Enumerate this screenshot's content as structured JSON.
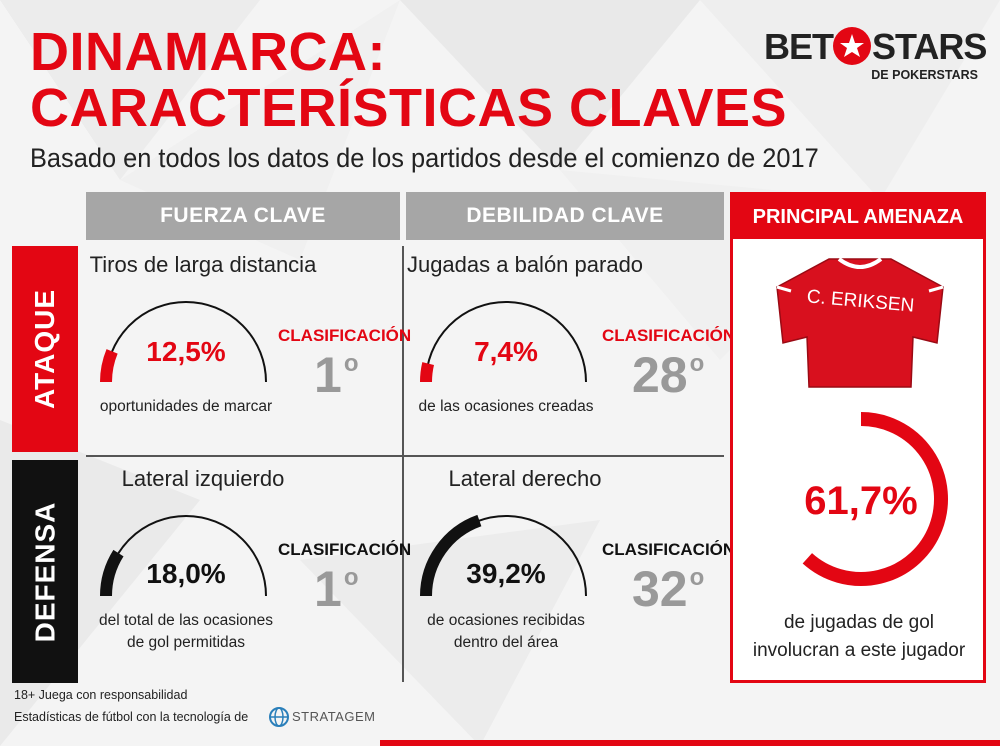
{
  "header": {
    "title_line1": "DINAMARCA:",
    "title_line2": "CARACTERÍSTICAS CLAVES",
    "subtitle": "Basado en todos los datos de los partidos desde el comienzo de 2017"
  },
  "logo": {
    "brand_left": "BET",
    "brand_right": "STARS",
    "brand_sub": "DE POKERSTARS"
  },
  "columns": {
    "strength": "FUERZA CLAVE",
    "weakness": "DEBILIDAD CLAVE",
    "threat": "PRINCIPAL AMENAZA"
  },
  "rows": {
    "attack": "ATAQUE",
    "defense": "DEFENSA"
  },
  "colors": {
    "red": "#e30613",
    "black": "#111111",
    "grey": "#a6a6a6"
  },
  "cells": {
    "attack_strength": {
      "title": "Tiros de larga distancia",
      "value": "12,5%",
      "fraction": 0.125,
      "desc_line1": "oportunidades de marcar",
      "desc_line2": "",
      "rank_label": "CLASIFICACIÓN",
      "rank": "1",
      "rank_suffix": "o"
    },
    "attack_weakness": {
      "title": "Jugadas a balón parado",
      "value": "7,4%",
      "fraction": 0.074,
      "desc_line1": "de las ocasiones creadas",
      "desc_line2": "",
      "rank_label": "CLASIFICACIÓN",
      "rank": "28",
      "rank_suffix": "o"
    },
    "defense_strength": {
      "title": "Lateral izquierdo",
      "value": "18,0%",
      "fraction": 0.18,
      "desc_line1": "del total de las ocasiones",
      "desc_line2": "de gol permitidas",
      "rank_label": "CLASIFICACIÓN",
      "rank": "1",
      "rank_suffix": "o"
    },
    "defense_weakness": {
      "title": "Lateral derecho",
      "value": "39,2%",
      "fraction": 0.392,
      "desc_line1": "de ocasiones recibidas",
      "desc_line2": "dentro del área",
      "rank_label": "CLASIFICACIÓN",
      "rank": "32",
      "rank_suffix": "o"
    }
  },
  "threat": {
    "player_name": "C. ERIKSEN",
    "value": "61,7%",
    "fraction": 0.617,
    "desc_line1": "de jugadas de gol",
    "desc_line2": "involucran a este jugador"
  },
  "footer": {
    "line1": "18+ Juega con responsabilidad",
    "line2": "Estadísticas de fútbol con la tecnología de",
    "partner": "STRATAGEM"
  }
}
